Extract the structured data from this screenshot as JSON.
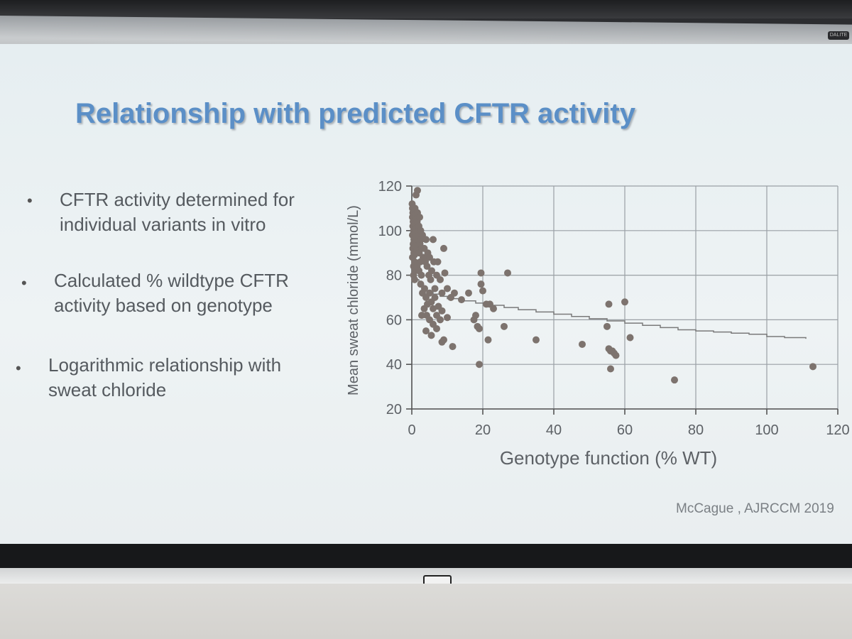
{
  "slide": {
    "title": "Relationship with predicted CFTR activity",
    "bullets": [
      "CFTR activity determined for individual variants in vitro",
      "Calculated % wildtype CFTR activity based on genotype",
      "Logarithmic relationship with sweat chloride"
    ],
    "bullet_marker": "•",
    "citation": "McCague , AJRCCM 2019",
    "housing_label": "DALITE"
  },
  "chart_data": {
    "type": "scatter",
    "xlabel": "Genotype function (% WT)",
    "ylabel": "Mean sweat chloride (mmol/L)",
    "xlim": [
      0,
      120
    ],
    "ylim": [
      20,
      120
    ],
    "x_ticks": [
      "0",
      "20",
      "40",
      "60",
      "80",
      "100",
      "120"
    ],
    "y_ticks": [
      "20",
      "40",
      "60",
      "80",
      "100",
      "120"
    ],
    "grid": true,
    "colors": {
      "points": "#7d736e",
      "fit_line": "#7a7a7a",
      "grid": "#9aa0a5"
    },
    "fit_line": [
      [
        0,
        84
      ],
      [
        1,
        78
      ],
      [
        2,
        75.5
      ],
      [
        3,
        74
      ],
      [
        4,
        73
      ],
      [
        6,
        71.5
      ],
      [
        8,
        70.5
      ],
      [
        10,
        69.5
      ],
      [
        14,
        68.5
      ],
      [
        18,
        67.5
      ],
      [
        22,
        66.5
      ],
      [
        26,
        65.5
      ],
      [
        30,
        64.5
      ],
      [
        35,
        63.5
      ],
      [
        40,
        62.5
      ],
      [
        45,
        61.5
      ],
      [
        50,
        60.5
      ],
      [
        55,
        59.5
      ],
      [
        60,
        58.5
      ],
      [
        65,
        57.5
      ],
      [
        70,
        56.5
      ],
      [
        75,
        55.5
      ],
      [
        80,
        55
      ],
      [
        85,
        54.5
      ],
      [
        90,
        54
      ],
      [
        95,
        53.5
      ],
      [
        100,
        52.5
      ],
      [
        105,
        52
      ],
      [
        111,
        51.5
      ]
    ],
    "points": [
      [
        0.1,
        112
      ],
      [
        0.2,
        110
      ],
      [
        0.3,
        108
      ],
      [
        0.2,
        106
      ],
      [
        0.4,
        104
      ],
      [
        0.3,
        102
      ],
      [
        0.5,
        100
      ],
      [
        0.2,
        98
      ],
      [
        0.6,
        96
      ],
      [
        0.4,
        94
      ],
      [
        0.3,
        92
      ],
      [
        0.6,
        90
      ],
      [
        0.2,
        88
      ],
      [
        0.8,
        86
      ],
      [
        0.5,
        84
      ],
      [
        0.9,
        110
      ],
      [
        1.0,
        107
      ],
      [
        1.1,
        105
      ],
      [
        0.8,
        103
      ],
      [
        1.2,
        101
      ],
      [
        1.0,
        99
      ],
      [
        0.9,
        97
      ],
      [
        1.3,
        95
      ],
      [
        1.1,
        93
      ],
      [
        1.4,
        91
      ],
      [
        0.7,
        89
      ],
      [
        1.6,
        108
      ],
      [
        1.5,
        104
      ],
      [
        1.8,
        100
      ],
      [
        1.7,
        96
      ],
      [
        2.0,
        102
      ],
      [
        1.9,
        98
      ],
      [
        2.2,
        106
      ],
      [
        2.3,
        94
      ],
      [
        2.1,
        90
      ],
      [
        2.5,
        100
      ],
      [
        2.6,
        96
      ],
      [
        2.8,
        92
      ],
      [
        3.0,
        98
      ],
      [
        3.2,
        88
      ],
      [
        2.4,
        86
      ],
      [
        1.2,
        116
      ],
      [
        1.6,
        118
      ],
      [
        0.9,
        82
      ],
      [
        0.5,
        80
      ],
      [
        0.8,
        78
      ],
      [
        1.5,
        84
      ],
      [
        2.0,
        82
      ],
      [
        2.7,
        80
      ],
      [
        3.5,
        92
      ],
      [
        3.8,
        86
      ],
      [
        4.0,
        96
      ],
      [
        4.3,
        84
      ],
      [
        4.5,
        90
      ],
      [
        4.8,
        80
      ],
      [
        5.0,
        88
      ],
      [
        5.3,
        78
      ],
      [
        5.6,
        82
      ],
      [
        6.0,
        96
      ],
      [
        6.2,
        86
      ],
      [
        6.5,
        74
      ],
      [
        7.0,
        80
      ],
      [
        7.3,
        86
      ],
      [
        8.0,
        78
      ],
      [
        8.5,
        72
      ],
      [
        9.0,
        92
      ],
      [
        9.3,
        81
      ],
      [
        10.0,
        74
      ],
      [
        11.0,
        70
      ],
      [
        2.5,
        76
      ],
      [
        3.0,
        72
      ],
      [
        3.6,
        74
      ],
      [
        4.0,
        70
      ],
      [
        4.4,
        67
      ],
      [
        5.0,
        72
      ],
      [
        5.5,
        68
      ],
      [
        6.0,
        65
      ],
      [
        6.5,
        70
      ],
      [
        7.0,
        62
      ],
      [
        7.5,
        66
      ],
      [
        8.0,
        60
      ],
      [
        8.5,
        64
      ],
      [
        3.5,
        65
      ],
      [
        2.8,
        62
      ],
      [
        4.2,
        62
      ],
      [
        5.0,
        60
      ],
      [
        4.0,
        55
      ],
      [
        5.5,
        53
      ],
      [
        6.0,
        58
      ],
      [
        7.0,
        56
      ],
      [
        8.5,
        50
      ],
      [
        9.0,
        51
      ],
      [
        10.0,
        61
      ],
      [
        11.5,
        48
      ],
      [
        12.0,
        72
      ],
      [
        14.0,
        69
      ],
      [
        16.0,
        72
      ],
      [
        17.5,
        60
      ],
      [
        18.0,
        62
      ],
      [
        18.5,
        57
      ],
      [
        19.0,
        56
      ],
      [
        19.5,
        81
      ],
      [
        19.5,
        76
      ],
      [
        20.0,
        73
      ],
      [
        21.0,
        67
      ],
      [
        21.5,
        51
      ],
      [
        22.0,
        67
      ],
      [
        23.0,
        65
      ],
      [
        26.0,
        57
      ],
      [
        27.0,
        81
      ],
      [
        19.0,
        40
      ],
      [
        35.0,
        51
      ],
      [
        48.0,
        49
      ],
      [
        55.0,
        57
      ],
      [
        55.5,
        67
      ],
      [
        55.5,
        47
      ],
      [
        56.0,
        46
      ],
      [
        56.5,
        46
      ],
      [
        57.0,
        45
      ],
      [
        57.5,
        44
      ],
      [
        60.0,
        68
      ],
      [
        61.5,
        52
      ],
      [
        56.0,
        38
      ],
      [
        74.0,
        33
      ],
      [
        113.0,
        39
      ]
    ]
  }
}
